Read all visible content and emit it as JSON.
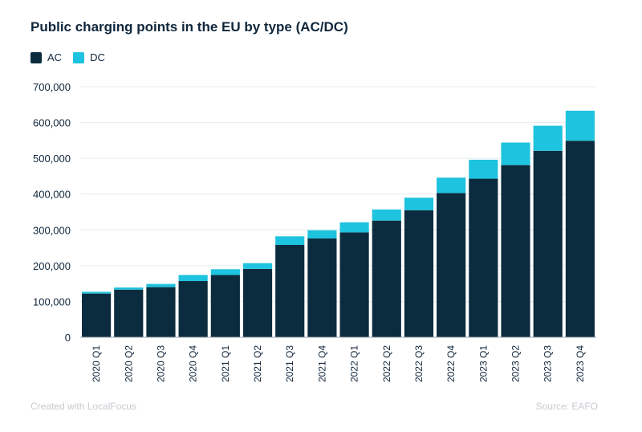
{
  "colors": {
    "ac": "#0b2c3e",
    "dc": "#1ec3df",
    "grid": "#e6e9ec",
    "text": "#10263b"
  },
  "legend": {
    "ac_label": "AC",
    "dc_label": "DC"
  },
  "footer": {
    "credit": "Created with LocalFocus",
    "source": "Source: EAFO"
  },
  "chart_data": {
    "type": "bar",
    "stacked": true,
    "title": "Public charging points in the EU by type (AC/DC)",
    "xlabel": "",
    "ylabel": "",
    "ylim": [
      0,
      700000
    ],
    "yticks": [
      "0",
      "100,000",
      "200,000",
      "300,000",
      "400,000",
      "500,000",
      "600,000",
      "700,000"
    ],
    "grid": true,
    "legend_position": "top-left",
    "categories": [
      "2020 Q1",
      "2020 Q2",
      "2020 Q3",
      "2020 Q4",
      "2021 Q1",
      "2021 Q2",
      "2021 Q3",
      "2021 Q4",
      "2022 Q1",
      "2022 Q2",
      "2022 Q3",
      "2022 Q4",
      "2023 Q1",
      "2023 Q2",
      "2023 Q3",
      "2023 Q4"
    ],
    "series": [
      {
        "name": "AC",
        "values": [
          122000,
          133000,
          140000,
          157000,
          174000,
          191000,
          258000,
          276000,
          293000,
          326000,
          355000,
          403000,
          443000,
          481000,
          521000,
          549000
        ]
      },
      {
        "name": "DC",
        "values": [
          5000,
          6000,
          9000,
          17000,
          16000,
          16000,
          24000,
          23000,
          28000,
          31000,
          35000,
          43000,
          53000,
          63000,
          70000,
          84000
        ]
      }
    ]
  }
}
